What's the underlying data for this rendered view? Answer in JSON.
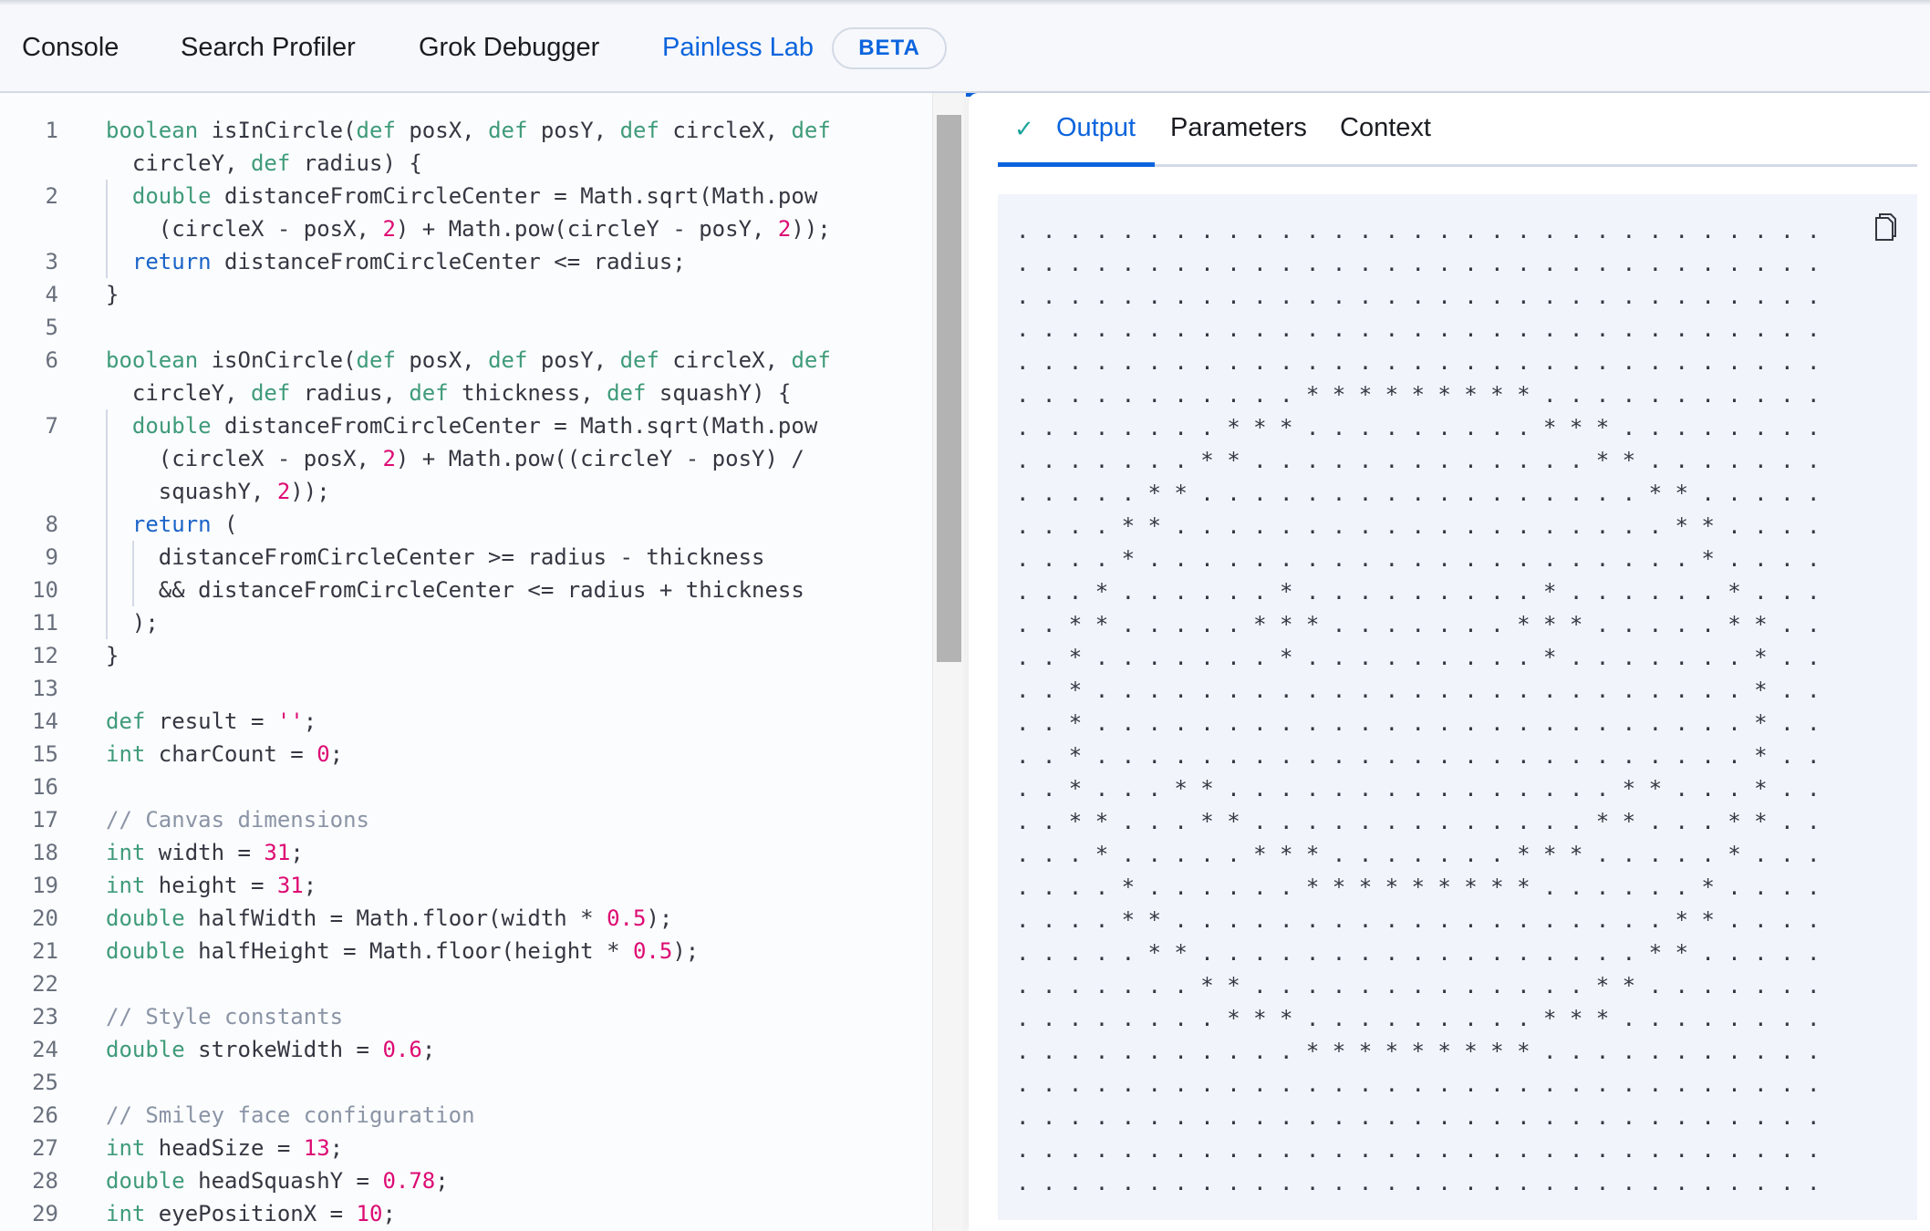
{
  "tabs": [
    {
      "label": "Console",
      "active": false
    },
    {
      "label": "Search Profiler",
      "active": false
    },
    {
      "label": "Grok Debugger",
      "active": false
    },
    {
      "label": "Painless Lab",
      "active": true,
      "badge": "BETA"
    }
  ],
  "accent_color": "#0b64dd",
  "editor": {
    "rows": [
      {
        "n": "1",
        "t": [
          [
            "boolean",
            "kw"
          ],
          [
            " isInCircle(",
            ""
          ],
          [
            "def",
            "kw"
          ],
          [
            " posX, ",
            ""
          ],
          [
            "def",
            "kw"
          ],
          [
            " posY, ",
            ""
          ],
          [
            "def",
            "kw"
          ],
          [
            " circleX, ",
            ""
          ],
          [
            "def",
            "kw"
          ]
        ]
      },
      {
        "n": "",
        "t": [
          [
            "  circleY, ",
            ""
          ],
          [
            "def",
            "kw"
          ],
          [
            " radius) {",
            ""
          ]
        ]
      },
      {
        "n": "2",
        "t": [
          [
            "  ",
            ""
          ],
          [
            "double",
            "kw"
          ],
          [
            " distanceFromCircleCenter = Math.sqrt(Math.pow",
            ""
          ]
        ]
      },
      {
        "n": "",
        "t": [
          [
            "    (circleX - posX, ",
            ""
          ],
          [
            "2",
            "num"
          ],
          [
            ") + Math.pow(circleY - posY, ",
            ""
          ],
          [
            "2",
            "num"
          ],
          [
            "));",
            ""
          ]
        ]
      },
      {
        "n": "3",
        "t": [
          [
            "  ",
            ""
          ],
          [
            "return",
            "ret"
          ],
          [
            " distanceFromCircleCenter <= radius;",
            ""
          ]
        ]
      },
      {
        "n": "4",
        "t": [
          [
            "}",
            ""
          ]
        ]
      },
      {
        "n": "5",
        "t": []
      },
      {
        "n": "6",
        "t": [
          [
            "boolean",
            "kw"
          ],
          [
            " isOnCircle(",
            ""
          ],
          [
            "def",
            "kw"
          ],
          [
            " posX, ",
            ""
          ],
          [
            "def",
            "kw"
          ],
          [
            " posY, ",
            ""
          ],
          [
            "def",
            "kw"
          ],
          [
            " circleX, ",
            ""
          ],
          [
            "def",
            "kw"
          ]
        ]
      },
      {
        "n": "",
        "t": [
          [
            "  circleY, ",
            ""
          ],
          [
            "def",
            "kw"
          ],
          [
            " radius, ",
            ""
          ],
          [
            "def",
            "kw"
          ],
          [
            " thickness, ",
            ""
          ],
          [
            "def",
            "kw"
          ],
          [
            " squashY) {",
            ""
          ]
        ]
      },
      {
        "n": "7",
        "t": [
          [
            "  ",
            ""
          ],
          [
            "double",
            "kw"
          ],
          [
            " distanceFromCircleCenter = Math.sqrt(Math.pow",
            ""
          ]
        ]
      },
      {
        "n": "",
        "t": [
          [
            "    (circleX - posX, ",
            ""
          ],
          [
            "2",
            "num"
          ],
          [
            ") + Math.pow((circleY - posY) /",
            ""
          ]
        ]
      },
      {
        "n": "",
        "t": [
          [
            "    squashY, ",
            ""
          ],
          [
            "2",
            "num"
          ],
          [
            "));",
            ""
          ]
        ]
      },
      {
        "n": "8",
        "t": [
          [
            "  ",
            ""
          ],
          [
            "return",
            "ret"
          ],
          [
            " (",
            ""
          ]
        ]
      },
      {
        "n": "9",
        "t": [
          [
            "    distanceFromCircleCenter >= radius - thickness",
            ""
          ]
        ]
      },
      {
        "n": "10",
        "t": [
          [
            "    && distanceFromCircleCenter <= radius + thickness",
            ""
          ]
        ]
      },
      {
        "n": "11",
        "t": [
          [
            "  );",
            ""
          ]
        ]
      },
      {
        "n": "12",
        "t": [
          [
            "}",
            ""
          ]
        ]
      },
      {
        "n": "13",
        "t": []
      },
      {
        "n": "14",
        "t": [
          [
            "def",
            "kw"
          ],
          [
            " result = ",
            ""
          ],
          [
            "''",
            "str"
          ],
          [
            ";",
            ""
          ]
        ]
      },
      {
        "n": "15",
        "t": [
          [
            "int",
            "kw"
          ],
          [
            " charCount = ",
            ""
          ],
          [
            "0",
            "num"
          ],
          [
            ";",
            ""
          ]
        ]
      },
      {
        "n": "16",
        "t": []
      },
      {
        "n": "17",
        "t": [
          [
            "// Canvas dimensions",
            "cm"
          ]
        ]
      },
      {
        "n": "18",
        "t": [
          [
            "int",
            "kw"
          ],
          [
            " width = ",
            ""
          ],
          [
            "31",
            "num"
          ],
          [
            ";",
            ""
          ]
        ]
      },
      {
        "n": "19",
        "t": [
          [
            "int",
            "kw"
          ],
          [
            " height = ",
            ""
          ],
          [
            "31",
            "num"
          ],
          [
            ";",
            ""
          ]
        ]
      },
      {
        "n": "20",
        "t": [
          [
            "double",
            "kw"
          ],
          [
            " halfWidth = Math.floor(width * ",
            ""
          ],
          [
            "0.5",
            "num"
          ],
          [
            ");",
            ""
          ]
        ]
      },
      {
        "n": "21",
        "t": [
          [
            "double",
            "kw"
          ],
          [
            " halfHeight = Math.floor(height * ",
            ""
          ],
          [
            "0.5",
            "num"
          ],
          [
            ");",
            ""
          ]
        ]
      },
      {
        "n": "22",
        "t": []
      },
      {
        "n": "23",
        "t": [
          [
            "// Style constants",
            "cm"
          ]
        ]
      },
      {
        "n": "24",
        "t": [
          [
            "double",
            "kw"
          ],
          [
            " strokeWidth = ",
            ""
          ],
          [
            "0.6",
            "num"
          ],
          [
            ";",
            ""
          ]
        ]
      },
      {
        "n": "25",
        "t": []
      },
      {
        "n": "26",
        "t": [
          [
            "// Smiley face configuration",
            "cm"
          ]
        ]
      },
      {
        "n": "27",
        "t": [
          [
            "int",
            "kw"
          ],
          [
            " headSize = ",
            ""
          ],
          [
            "13",
            "num"
          ],
          [
            ";",
            ""
          ]
        ]
      },
      {
        "n": "28",
        "t": [
          [
            "double",
            "kw"
          ],
          [
            " headSquashY = ",
            ""
          ],
          [
            "0.78",
            "num"
          ],
          [
            ";",
            ""
          ]
        ]
      },
      {
        "n": "29",
        "t": [
          [
            "int",
            "kw"
          ],
          [
            " eyePositionX = ",
            ""
          ],
          [
            "10",
            "num"
          ],
          [
            ";",
            ""
          ]
        ]
      }
    ]
  },
  "result_panel": {
    "tabs": [
      {
        "label": "Output",
        "active": true,
        "icon": "check-icon"
      },
      {
        "label": "Parameters",
        "active": false
      },
      {
        "label": "Context",
        "active": false
      }
    ],
    "copy_icon": "copy-icon",
    "output_lines": [
      "...............................",
      "...............................",
      "...............................",
      "...............................",
      "...............................",
      "...........*********...........",
      "........***.........***........",
      ".......**.............**.......",
      ".....**.................**.....",
      "....**...................**....",
      "....*.....................*....",
      "...*......*.........*......*...",
      "..**.....***.......***.....**..",
      "..*.......*.........*.......*..",
      "..*.........................*..",
      "..*.........................*..",
      "..*.........................*..",
      "..*...**...............**...*..",
      "..**...**.............**...**..",
      "...*.....***.......***.....*...",
      "....*......*********......*....",
      "....**...................**....",
      ".....**.................**.....",
      ".......**.............**.......",
      "........***.........***........",
      "...........*********...........",
      "...............................",
      "...............................",
      "...............................",
      "..............................."
    ]
  }
}
